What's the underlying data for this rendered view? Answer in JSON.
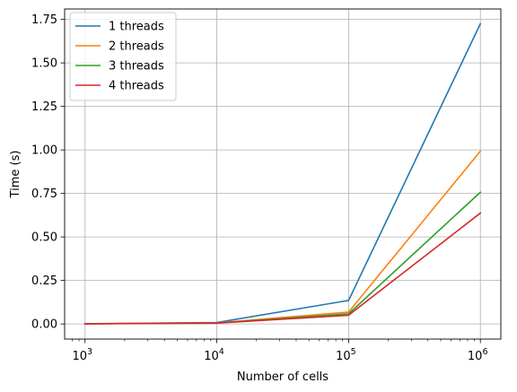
{
  "chart_data": {
    "type": "line",
    "title": "",
    "xlabel": "Number of cells",
    "ylabel": "Time (s)",
    "x_scale": "log",
    "x": [
      1000,
      10000,
      100000,
      1000000
    ],
    "xlim": [
      700,
      1430000
    ],
    "ylim": [
      -0.087,
      1.81
    ],
    "x_ticks": [
      {
        "value": 1000,
        "base": "10",
        "exp": "3"
      },
      {
        "value": 10000,
        "base": "10",
        "exp": "4"
      },
      {
        "value": 100000,
        "base": "10",
        "exp": "5"
      },
      {
        "value": 1000000,
        "base": "10",
        "exp": "6"
      }
    ],
    "y_ticks": [
      {
        "value": 0.0,
        "label": "0.00"
      },
      {
        "value": 0.25,
        "label": "0.25"
      },
      {
        "value": 0.5,
        "label": "0.50"
      },
      {
        "value": 0.75,
        "label": "0.75"
      },
      {
        "value": 1.0,
        "label": "1.00"
      },
      {
        "value": 1.25,
        "label": "1.25"
      },
      {
        "value": 1.5,
        "label": "1.50"
      },
      {
        "value": 1.75,
        "label": "1.75"
      }
    ],
    "grid": true,
    "legend_position": "top-left",
    "series": [
      {
        "name": "1 threads",
        "color": "#1f77b4",
        "values": [
          0.001,
          0.008,
          0.135,
          1.725
        ]
      },
      {
        "name": "2 threads",
        "color": "#ff7f0e",
        "values": [
          0.001,
          0.006,
          0.068,
          0.993
        ]
      },
      {
        "name": "3 threads",
        "color": "#2ca02c",
        "values": [
          0.001,
          0.005,
          0.058,
          0.757
        ]
      },
      {
        "name": "4 threads",
        "color": "#d62728",
        "values": [
          0.0005,
          0.005,
          0.05,
          0.637
        ]
      }
    ]
  }
}
